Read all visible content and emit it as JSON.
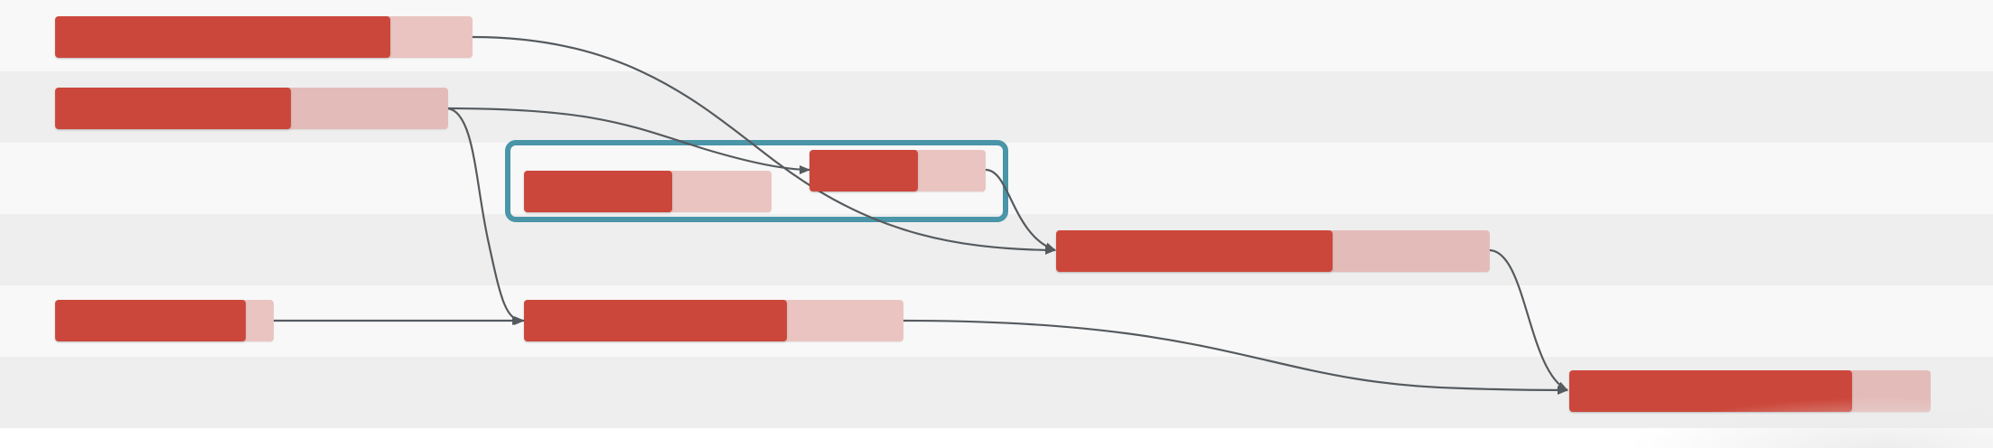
{
  "diagram": {
    "type": "gantt",
    "colors": {
      "row_light": "#f8f8f8",
      "row_dark": "#eeeeee",
      "bar_progress": "#cc473b",
      "bar_remaining": "#eac4c1",
      "group_border": "#4a95a8",
      "link": "#555a5e"
    },
    "tasks": [
      {
        "id": "t1",
        "row": 0,
        "progress": 0.8
      },
      {
        "id": "t2",
        "row": 1,
        "progress": 0.6
      },
      {
        "id": "t3",
        "row": 2,
        "progress": 0.6,
        "group": "g1"
      },
      {
        "id": "t4",
        "row": 2,
        "progress": 0.6,
        "group": "g1"
      },
      {
        "id": "t5",
        "row": 3,
        "progress": 0.64
      },
      {
        "id": "t6",
        "row": 4,
        "progress": 0.87
      },
      {
        "id": "t7",
        "row": 4,
        "progress": 0.69
      },
      {
        "id": "t8",
        "row": 5,
        "progress": 0.78
      }
    ],
    "groups": [
      {
        "id": "g1",
        "tasks": [
          "t3",
          "t4"
        ]
      }
    ],
    "dependencies": [
      {
        "from": "t1",
        "to": "t5"
      },
      {
        "from": "t2",
        "to": "t4"
      },
      {
        "from": "t2",
        "to": "t7"
      },
      {
        "from": "t4",
        "to": "t5"
      },
      {
        "from": "t6",
        "to": "t7"
      },
      {
        "from": "t5",
        "to": "t8"
      },
      {
        "from": "t7",
        "to": "t8"
      }
    ]
  }
}
